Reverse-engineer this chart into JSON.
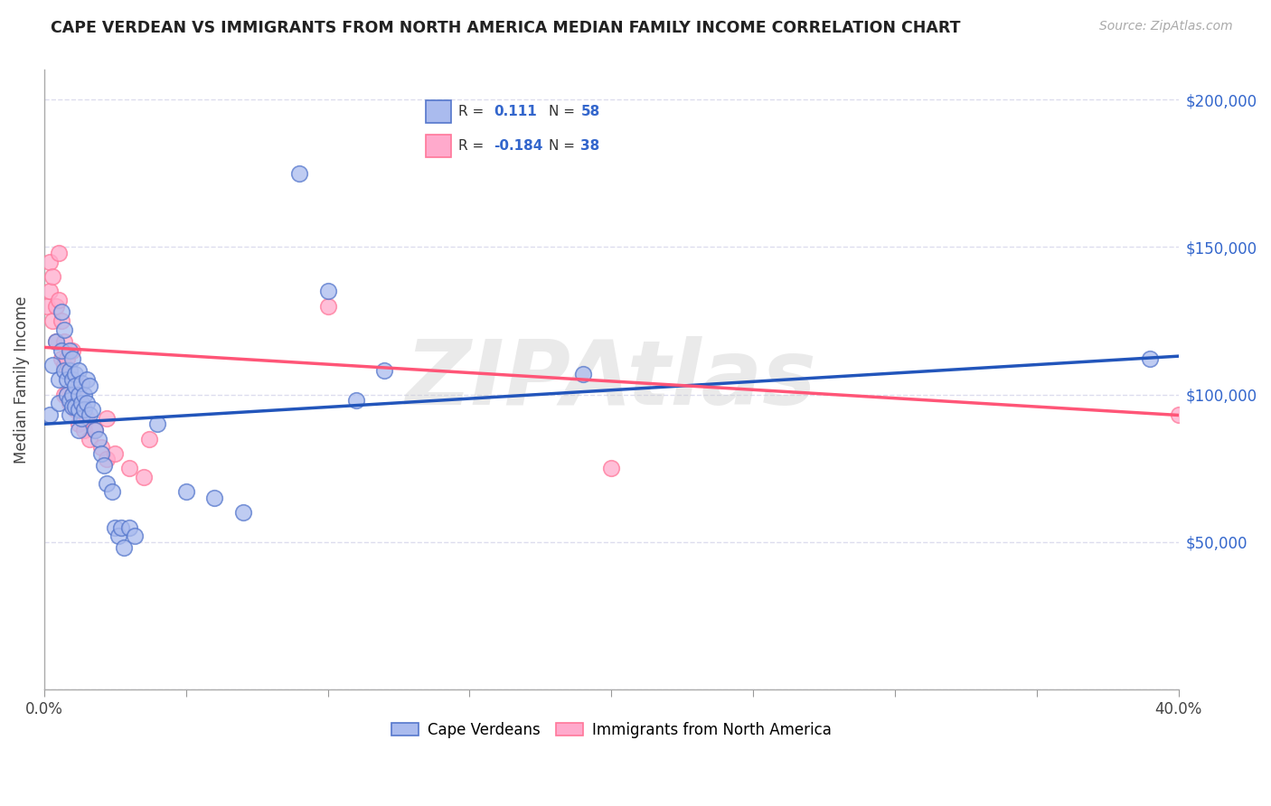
{
  "title": "CAPE VERDEAN VS IMMIGRANTS FROM NORTH AMERICA MEDIAN FAMILY INCOME CORRELATION CHART",
  "source": "Source: ZipAtlas.com",
  "ylabel": "Median Family Income",
  "yticks": [
    0,
    50000,
    100000,
    150000,
    200000
  ],
  "ytick_labels": [
    "",
    "$50,000",
    "$100,000",
    "$150,000",
    "$200,000"
  ],
  "xlim": [
    0.0,
    0.4
  ],
  "ylim": [
    0,
    210000
  ],
  "blue_R": "0.111",
  "blue_N": "58",
  "pink_R": "-0.184",
  "pink_N": "38",
  "blue_fill": "#AABBEE",
  "pink_fill": "#FFAACC",
  "blue_edge": "#5577CC",
  "pink_edge": "#FF7799",
  "blue_line": "#2255BB",
  "pink_line": "#FF5577",
  "blue_scatter": [
    [
      0.002,
      93000
    ],
    [
      0.003,
      110000
    ],
    [
      0.004,
      118000
    ],
    [
      0.005,
      105000
    ],
    [
      0.005,
      97000
    ],
    [
      0.006,
      128000
    ],
    [
      0.006,
      115000
    ],
    [
      0.007,
      122000
    ],
    [
      0.007,
      108000
    ],
    [
      0.008,
      105000
    ],
    [
      0.008,
      100000
    ],
    [
      0.009,
      115000
    ],
    [
      0.009,
      108000
    ],
    [
      0.009,
      98000
    ],
    [
      0.009,
      93000
    ],
    [
      0.01,
      112000
    ],
    [
      0.01,
      105000
    ],
    [
      0.01,
      100000
    ],
    [
      0.01,
      96000
    ],
    [
      0.011,
      107000
    ],
    [
      0.011,
      103000
    ],
    [
      0.011,
      96000
    ],
    [
      0.012,
      108000
    ],
    [
      0.012,
      100000
    ],
    [
      0.012,
      95000
    ],
    [
      0.012,
      88000
    ],
    [
      0.013,
      104000
    ],
    [
      0.013,
      97000
    ],
    [
      0.013,
      92000
    ],
    [
      0.014,
      100000
    ],
    [
      0.014,
      95000
    ],
    [
      0.015,
      105000
    ],
    [
      0.015,
      97000
    ],
    [
      0.016,
      103000
    ],
    [
      0.016,
      93000
    ],
    [
      0.017,
      95000
    ],
    [
      0.018,
      88000
    ],
    [
      0.019,
      85000
    ],
    [
      0.02,
      80000
    ],
    [
      0.021,
      76000
    ],
    [
      0.022,
      70000
    ],
    [
      0.024,
      67000
    ],
    [
      0.025,
      55000
    ],
    [
      0.026,
      52000
    ],
    [
      0.027,
      55000
    ],
    [
      0.028,
      48000
    ],
    [
      0.03,
      55000
    ],
    [
      0.032,
      52000
    ],
    [
      0.04,
      90000
    ],
    [
      0.05,
      67000
    ],
    [
      0.06,
      65000
    ],
    [
      0.07,
      60000
    ],
    [
      0.09,
      175000
    ],
    [
      0.1,
      135000
    ],
    [
      0.11,
      98000
    ],
    [
      0.12,
      108000
    ],
    [
      0.19,
      107000
    ],
    [
      0.39,
      112000
    ]
  ],
  "pink_scatter": [
    [
      0.001,
      130000
    ],
    [
      0.002,
      145000
    ],
    [
      0.002,
      135000
    ],
    [
      0.003,
      140000
    ],
    [
      0.003,
      125000
    ],
    [
      0.004,
      130000
    ],
    [
      0.004,
      118000
    ],
    [
      0.005,
      148000
    ],
    [
      0.005,
      132000
    ],
    [
      0.006,
      125000
    ],
    [
      0.006,
      112000
    ],
    [
      0.007,
      118000
    ],
    [
      0.007,
      110000
    ],
    [
      0.007,
      100000
    ],
    [
      0.008,
      112000
    ],
    [
      0.008,
      100000
    ],
    [
      0.009,
      108000
    ],
    [
      0.009,
      97000
    ],
    [
      0.01,
      115000
    ],
    [
      0.01,
      100000
    ],
    [
      0.011,
      95000
    ],
    [
      0.012,
      103000
    ],
    [
      0.012,
      90000
    ],
    [
      0.013,
      97000
    ],
    [
      0.014,
      88000
    ],
    [
      0.015,
      92000
    ],
    [
      0.016,
      85000
    ],
    [
      0.018,
      88000
    ],
    [
      0.02,
      82000
    ],
    [
      0.022,
      78000
    ],
    [
      0.022,
      92000
    ],
    [
      0.025,
      80000
    ],
    [
      0.03,
      75000
    ],
    [
      0.035,
      72000
    ],
    [
      0.037,
      85000
    ],
    [
      0.1,
      130000
    ],
    [
      0.2,
      75000
    ],
    [
      0.4,
      93000
    ]
  ],
  "legend_label_blue": "Cape Verdeans",
  "legend_label_pink": "Immigrants from North America",
  "watermark": "ZIPAtlas",
  "bg": "#FFFFFF",
  "grid_color": "#DDDDEE",
  "accent_blue": "#3366CC"
}
